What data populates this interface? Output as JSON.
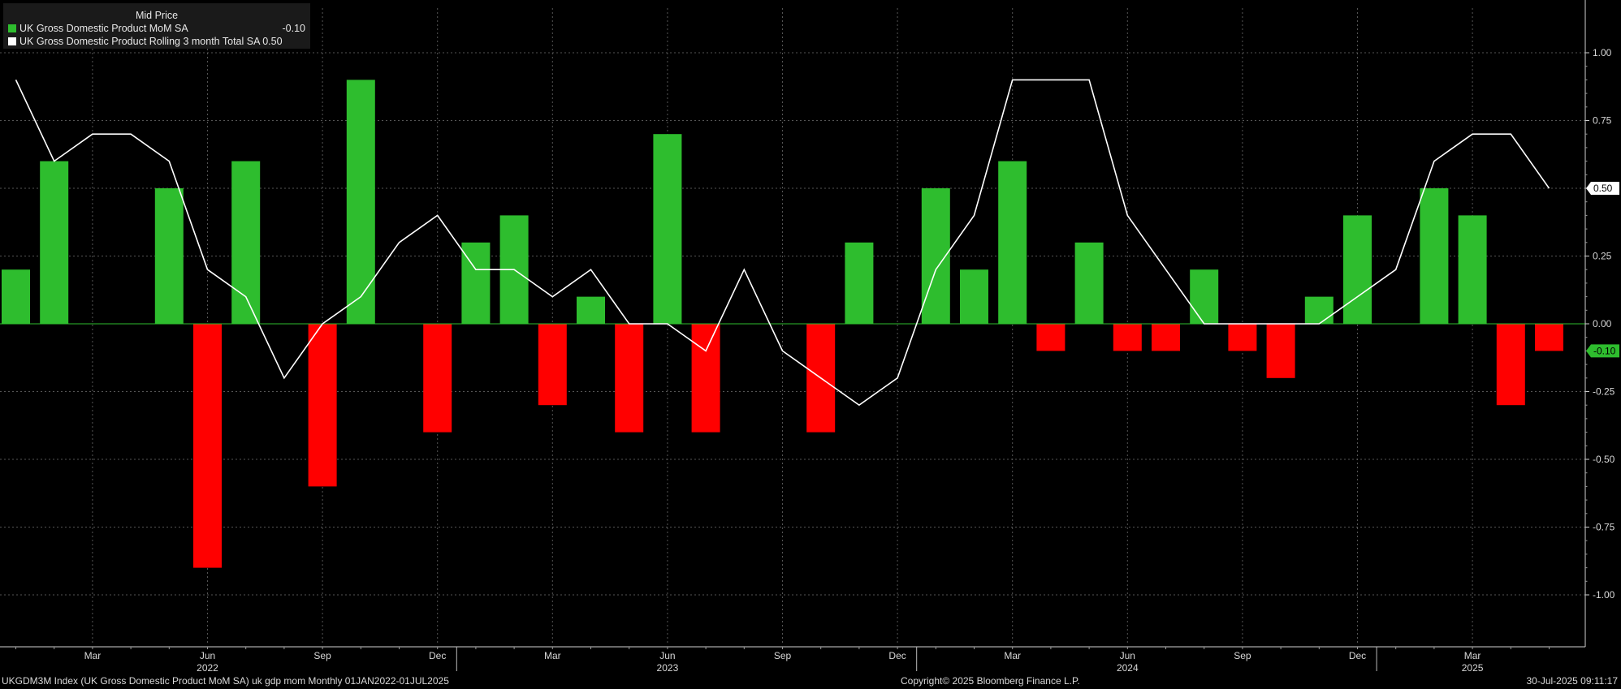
{
  "legend": {
    "header": "Mid Price",
    "items": [
      {
        "label": "UK Gross Domestic Product MoM SA",
        "value": "-0.10",
        "color": "#2ebd2e"
      },
      {
        "label": "UK Gross Domestic Product Rolling 3 month Total SA 0.50",
        "value": "",
        "color": "#ffffff"
      }
    ]
  },
  "footer": {
    "left": "UKGDM3M Index (UK Gross Domestic Product MoM SA) uk gdp mom  Monthly 01JAN2022-01JUL2025",
    "center": "Copyright© 2025 Bloomberg Finance L.P.",
    "right": "30-Jul-2025 09:11:17"
  },
  "chart_data": {
    "type": "bar",
    "x": [
      "2022-01",
      "2022-02",
      "2022-03",
      "2022-04",
      "2022-05",
      "2022-06",
      "2022-07",
      "2022-08",
      "2022-09",
      "2022-10",
      "2022-11",
      "2022-12",
      "2023-01",
      "2023-02",
      "2023-03",
      "2023-04",
      "2023-05",
      "2023-06",
      "2023-07",
      "2023-08",
      "2023-09",
      "2023-10",
      "2023-11",
      "2023-12",
      "2024-01",
      "2024-02",
      "2024-03",
      "2024-04",
      "2024-05",
      "2024-06",
      "2024-07",
      "2024-08",
      "2024-09",
      "2024-10",
      "2024-11",
      "2024-12",
      "2025-01",
      "2025-02",
      "2025-03",
      "2025-04",
      "2025-05"
    ],
    "series": [
      {
        "name": "UK Gross Domestic Product MoM SA",
        "kind": "bar",
        "positive_color": "#2ebd2e",
        "negative_color": "#ff0000",
        "values": [
          0.2,
          0.6,
          0.0,
          0.0,
          0.5,
          -0.9,
          0.6,
          0.0,
          -0.6,
          0.9,
          0.0,
          -0.4,
          0.3,
          0.4,
          -0.3,
          0.1,
          -0.4,
          0.7,
          -0.4,
          0.0,
          0.0,
          -0.4,
          0.3,
          0.0,
          0.5,
          0.2,
          0.6,
          -0.1,
          0.3,
          -0.1,
          -0.1,
          0.2,
          -0.1,
          -0.2,
          0.1,
          0.4,
          0.0,
          0.5,
          0.4,
          -0.3,
          -0.1
        ],
        "last_value_label": "-0.10",
        "last_color": "#2ebd2e"
      },
      {
        "name": "UK Gross Domestic Product Rolling 3 month Total SA",
        "kind": "line",
        "color": "#ffffff",
        "values": [
          0.9,
          0.6,
          0.7,
          0.7,
          0.6,
          0.2,
          0.1,
          -0.2,
          0.0,
          0.1,
          0.3,
          0.4,
          0.2,
          0.2,
          0.1,
          0.2,
          0.0,
          0.0,
          -0.1,
          0.2,
          -0.1,
          -0.2,
          -0.3,
          -0.2,
          0.2,
          0.4,
          0.9,
          0.9,
          0.9,
          0.4,
          0.2,
          0.0,
          0.0,
          0.0,
          0.0,
          0.1,
          0.2,
          0.6,
          0.7,
          0.7,
          0.5
        ],
        "last_value_label": "0.50",
        "last_color": "#ffffff"
      }
    ],
    "x_tick_labels": [
      {
        "i": 2,
        "label": "Mar"
      },
      {
        "i": 5,
        "label": "Jun"
      },
      {
        "i": 8,
        "label": "Sep"
      },
      {
        "i": 11,
        "label": "Dec"
      },
      {
        "i": 14,
        "label": "Mar"
      },
      {
        "i": 17,
        "label": "Jun"
      },
      {
        "i": 20,
        "label": "Sep"
      },
      {
        "i": 23,
        "label": "Dec"
      },
      {
        "i": 26,
        "label": "Mar"
      },
      {
        "i": 29,
        "label": "Jun"
      },
      {
        "i": 32,
        "label": "Sep"
      },
      {
        "i": 35,
        "label": "Dec"
      },
      {
        "i": 38,
        "label": "Mar"
      }
    ],
    "year_labels": [
      {
        "i": 5,
        "label": "2022"
      },
      {
        "i": 17,
        "label": "2023"
      },
      {
        "i": 29,
        "label": "2024"
      },
      {
        "i": 38,
        "label": "2025"
      }
    ],
    "year_dividers": [
      0,
      12,
      24,
      36
    ],
    "y_ticks": [
      1.0,
      0.75,
      0.5,
      0.25,
      0.0,
      -0.25,
      -0.5,
      -0.75,
      -1.0
    ],
    "y_tick_labels": [
      "1.00",
      "0.75",
      "0.50",
      "0.25",
      "0.00",
      "-0.25",
      "-0.50",
      "-0.75",
      "-1.00"
    ],
    "ylim": [
      -1.1,
      1.1
    ],
    "y_axis_side": "right",
    "grid": true,
    "legend_position": "top-left",
    "background": "#000000"
  }
}
